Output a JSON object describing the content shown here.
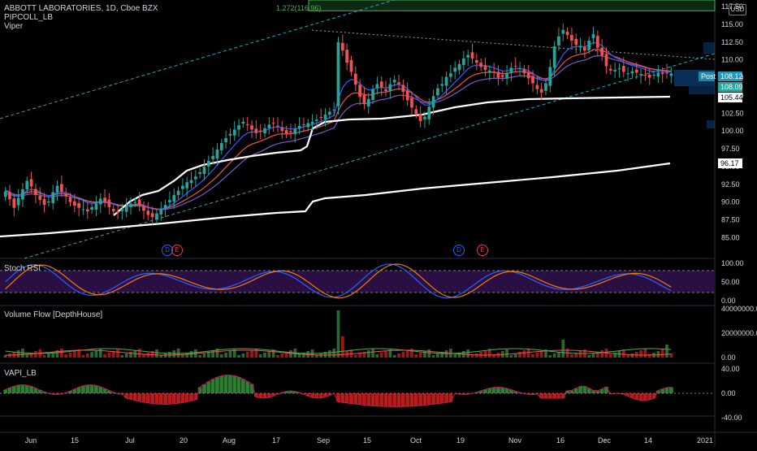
{
  "header": {
    "symbol_line": "ABBOTT LABORATORIES, 1D, Cboe BZX",
    "indicator_1": "PIPCOLL_LB",
    "indicator_2": "Viper",
    "currency": "USD",
    "fib_label": "1.272(116.96)"
  },
  "price_tags": {
    "post_label": "Post",
    "post_value": "108.12",
    "last_value": "108.09",
    "ma_value": "105.44",
    "long_ma_value": "96.17"
  },
  "panes": {
    "stoch_rsi": "Stoch RSI",
    "volume_flow": "Volume Flow [DepthHouse]",
    "vapi": "VAPI_LB"
  },
  "event_badges": [
    {
      "label": "D",
      "color": "#2962ff"
    },
    {
      "label": "E",
      "color": "#f23645"
    },
    {
      "label": "D",
      "color": "#2962ff"
    },
    {
      "label": "E",
      "color": "#f23645"
    }
  ],
  "colors": {
    "background": "#000000",
    "up": "#26a69a",
    "down": "#ef5350",
    "channel": "#2aa5b5",
    "ma_white": "#ffffff",
    "stoch_fill": "#2a0f45",
    "stoch_k": "#2962ff",
    "stoch_d": "#f57c00",
    "vol_up": "#2e7d32",
    "vol_down": "#b71c1c"
  },
  "chart_data": {
    "type": "candlestick",
    "symbol": "ABBOTT LABORATORIES",
    "timeframe": "1D",
    "y_ticks": [
      "117.50",
      "115.00",
      "112.50",
      "110.00",
      "107.50",
      "105.00",
      "102.50",
      "100.00",
      "97.50",
      "95.00",
      "92.50",
      "90.00",
      "87.50",
      "85.00"
    ],
    "ylim": [
      83,
      117.5
    ],
    "x_ticks": [
      "Jun",
      "15",
      "Jul",
      "20",
      "Aug",
      "17",
      "Sep",
      "15",
      "Oct",
      "19",
      "Nov",
      "16",
      "Dec",
      "14",
      "2021"
    ],
    "closes": [
      91.5,
      90.4,
      89.2,
      90.6,
      91.8,
      93.0,
      92.2,
      91.0,
      90.3,
      89.6,
      90.1,
      91.4,
      92.3,
      91.5,
      90.8,
      90.0,
      89.5,
      89.2,
      89.0,
      88.7,
      89.3,
      89.8,
      90.5,
      90.0,
      89.3,
      88.7,
      88.5,
      89.0,
      89.4,
      89.8,
      90.0,
      89.6,
      88.8,
      88.2,
      87.9,
      88.4,
      89.0,
      89.6,
      90.3,
      91.0,
      91.6,
      92.3,
      92.8,
      93.1,
      93.6,
      94.2,
      95.0,
      95.8,
      96.5,
      97.4,
      98.3,
      99.0,
      99.6,
      100.2,
      100.8,
      101.3,
      100.9,
      100.2,
      99.7,
      99.9,
      100.4,
      100.9,
      101.1,
      100.6,
      100.0,
      99.6,
      99.8,
      100.3,
      100.7,
      100.9,
      101.1,
      101.3,
      101.6,
      101.9,
      102.3,
      102.7,
      103.0,
      112.5,
      111.3,
      109.6,
      108.3,
      106.5,
      104.8,
      103.8,
      104.5,
      105.9,
      106.6,
      106.1,
      105.6,
      106.6,
      107.2,
      106.6,
      105.5,
      104.3,
      103.3,
      102.4,
      101.4,
      102.0,
      103.4,
      104.9,
      106.0,
      106.6,
      107.6,
      108.1,
      108.9,
      109.4,
      110.2,
      110.7,
      110.2,
      109.6,
      109.0,
      108.6,
      108.5,
      108.2,
      107.5,
      107.6,
      108.2,
      108.9,
      109.1,
      108.8,
      108.1,
      107.4,
      106.7,
      105.9,
      105.4,
      106.7,
      109.0,
      111.9,
      113.3,
      114.2,
      113.5,
      112.7,
      112.1,
      111.9,
      111.3,
      112.7,
      113.6,
      111.7,
      110.6,
      109.1,
      108.5,
      108.6,
      108.8,
      108.3,
      108.1,
      108.4,
      108.2,
      108.0,
      107.8,
      107.5,
      107.9,
      108.2,
      108.0,
      108.1,
      108.09
    ],
    "indicator_ticks": {
      "stoch_rsi": [
        "100.00",
        "50.00",
        "0.00"
      ],
      "volume_flow": [
        "40000000.00",
        "20000000.00",
        "0.00"
      ],
      "vapi": [
        "40.00",
        "0.00",
        "-40.00"
      ]
    },
    "annotations": [
      "1.272(116.96)",
      "Post 108.12",
      "108.09",
      "105.44",
      "96.17"
    ]
  }
}
